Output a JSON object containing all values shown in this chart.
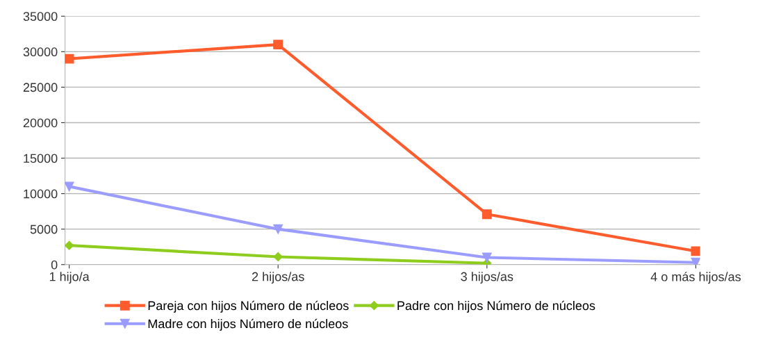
{
  "chart_data": {
    "type": "line",
    "categories": [
      "1 hijo/a",
      "2 hijos/as",
      "3 hijos/as",
      "4 o más hijos/as"
    ],
    "series": [
      {
        "name": "Pareja con hijos Número de núcleos",
        "color": "#ff5c2e",
        "marker": "square",
        "values": [
          29000,
          31000,
          7100,
          1900
        ]
      },
      {
        "name": "Padre con hijos Número de núcleos",
        "color": "#8ecc1e",
        "marker": "diamond",
        "values": [
          2700,
          1100,
          200,
          null
        ]
      },
      {
        "name": "Madre con hijos Número de núcleos",
        "color": "#9a9cff",
        "marker": "triangle",
        "values": [
          11000,
          5000,
          1000,
          300
        ]
      }
    ],
    "ylim": [
      0,
      35000
    ],
    "yticks": [
      0,
      5000,
      10000,
      15000,
      20000,
      25000,
      30000,
      35000
    ],
    "grid": "y",
    "legend": "bottom"
  }
}
